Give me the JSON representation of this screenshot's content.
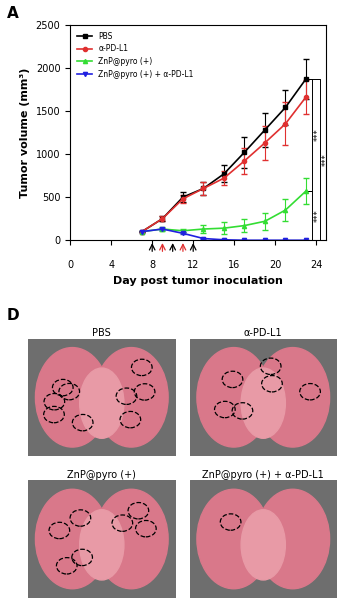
{
  "chart_data": {
    "type": "line",
    "panel_label": "A",
    "x_label": "Day post tumor inoculation",
    "y_label": "Tumor volume (mm³)",
    "x": [
      7,
      9,
      11,
      13,
      15,
      17,
      19,
      21,
      23
    ],
    "series": [
      {
        "name": "PBS",
        "color": "#000000",
        "marker": "square",
        "values": [
          100,
          250,
          500,
          600,
          770,
          1020,
          1280,
          1540,
          1870
        ],
        "errors": [
          10,
          30,
          60,
          80,
          100,
          180,
          200,
          200,
          230
        ]
      },
      {
        "name": "α-PD-L1",
        "color": "#e03030",
        "marker": "circle",
        "values": [
          100,
          250,
          480,
          600,
          720,
          920,
          1130,
          1350,
          1660
        ],
        "errors": [
          10,
          30,
          50,
          80,
          80,
          150,
          200,
          250,
          200
        ]
      },
      {
        "name": "ZnP@pyro (+)",
        "color": "#33dd33",
        "marker": "triangle_up",
        "values": [
          100,
          130,
          110,
          130,
          140,
          170,
          220,
          350,
          570
        ],
        "errors": [
          10,
          20,
          20,
          50,
          70,
          80,
          100,
          130,
          150
        ]
      },
      {
        "name": "ZnP@pyro (+) + α-PD-L1",
        "color": "#2020e0",
        "marker": "triangle_down",
        "values": [
          100,
          130,
          80,
          20,
          5,
          0,
          0,
          0,
          0
        ],
        "errors": [
          10,
          15,
          10,
          10,
          5,
          0,
          0,
          0,
          0
        ]
      }
    ],
    "treatment_arrows": [
      {
        "x": 8,
        "color": "#000000"
      },
      {
        "x": 9,
        "color": "#e03030"
      },
      {
        "x": 10,
        "color": "#000000"
      },
      {
        "x": 11,
        "color": "#e03030"
      },
      {
        "x": 12,
        "color": "#000000"
      }
    ],
    "significance": [
      {
        "from": "PBS",
        "to": "ZnP@pyro (+)",
        "label": "***"
      },
      {
        "from": "ZnP@pyro (+)",
        "to": "ZnP@pyro (+) + α-PD-L1",
        "label": "***"
      },
      {
        "from": "PBS",
        "to": "ZnP@pyro (+) + α-PD-L1",
        "label": "***"
      }
    ],
    "xlim": [
      0,
      25
    ],
    "xticks": [
      0,
      4,
      8,
      12,
      16,
      20,
      24
    ],
    "ylim": [
      0,
      2500
    ],
    "yticks": [
      0,
      500,
      1000,
      1500,
      2000,
      2500
    ],
    "legend": "upper left",
    "grid": false
  },
  "panel_D": {
    "label": "D",
    "images": [
      {
        "title": "PBS",
        "nodules": 9
      },
      {
        "title": "α-PD-L1",
        "nodules": 6
      },
      {
        "title": "ZnP@pyro (+)",
        "nodules": 7
      },
      {
        "title": "ZnP@pyro (+) + α-PD-L1",
        "nodules": 1
      }
    ]
  }
}
